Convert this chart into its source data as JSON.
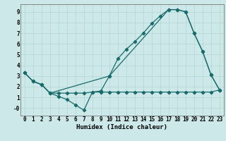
{
  "xlabel": "Humidex (Indice chaleur)",
  "bg_color": "#cce8e8",
  "grid_color": "#b8d8d8",
  "line_color": "#1a6b6b",
  "xlim": [
    -0.5,
    23.5
  ],
  "ylim": [
    -0.7,
    9.7
  ],
  "line1_x": [
    0,
    1,
    2,
    3,
    4,
    5,
    6,
    7,
    8,
    9,
    10,
    11,
    12,
    13,
    14,
    15,
    16,
    17,
    18,
    19,
    20,
    21,
    22,
    23
  ],
  "line1_y": [
    3.3,
    2.5,
    2.2,
    1.4,
    1.1,
    0.8,
    0.3,
    -0.2,
    1.5,
    1.6,
    3.0,
    4.6,
    5.5,
    6.2,
    7.0,
    7.9,
    8.6,
    9.2,
    9.2,
    9.0,
    7.0,
    5.3,
    3.1,
    1.7
  ],
  "line2_x": [
    0,
    1,
    2,
    3,
    4,
    5,
    6,
    7,
    8,
    9,
    10,
    11,
    12,
    13,
    14,
    15,
    16,
    17,
    18,
    19,
    20,
    21,
    22,
    23
  ],
  "line2_y": [
    3.3,
    2.5,
    2.2,
    1.4,
    1.4,
    1.4,
    1.4,
    1.4,
    1.5,
    1.5,
    1.5,
    1.5,
    1.5,
    1.5,
    1.5,
    1.5,
    1.5,
    1.5,
    1.5,
    1.5,
    1.5,
    1.5,
    1.5,
    1.7
  ],
  "line3_x": [
    0,
    1,
    2,
    3,
    10,
    17,
    18,
    19,
    20,
    21,
    22,
    23
  ],
  "line3_y": [
    3.3,
    2.5,
    2.2,
    1.4,
    3.0,
    9.2,
    9.2,
    9.0,
    7.0,
    5.3,
    3.1,
    1.7
  ],
  "xticks": [
    0,
    1,
    2,
    3,
    4,
    5,
    6,
    7,
    8,
    9,
    10,
    11,
    12,
    13,
    14,
    15,
    16,
    17,
    18,
    19,
    20,
    21,
    22,
    23
  ],
  "xtick_labels": [
    "0",
    "1",
    "2",
    "3",
    "4",
    "5",
    "6",
    "7",
    "8",
    "9",
    "10",
    "11",
    "12",
    "13",
    "14",
    "15",
    "16",
    "17",
    "18",
    "19",
    "20",
    "21",
    "22",
    "23"
  ],
  "yticks": [
    0,
    1,
    2,
    3,
    4,
    5,
    6,
    7,
    8,
    9
  ],
  "ytick_labels": [
    "-0",
    "1",
    "2",
    "3",
    "4",
    "5",
    "6",
    "7",
    "8",
    "9"
  ],
  "fontsize_tick": 5.5,
  "fontsize_xlabel": 6.5,
  "marker_size": 2.2,
  "linewidth": 0.9
}
